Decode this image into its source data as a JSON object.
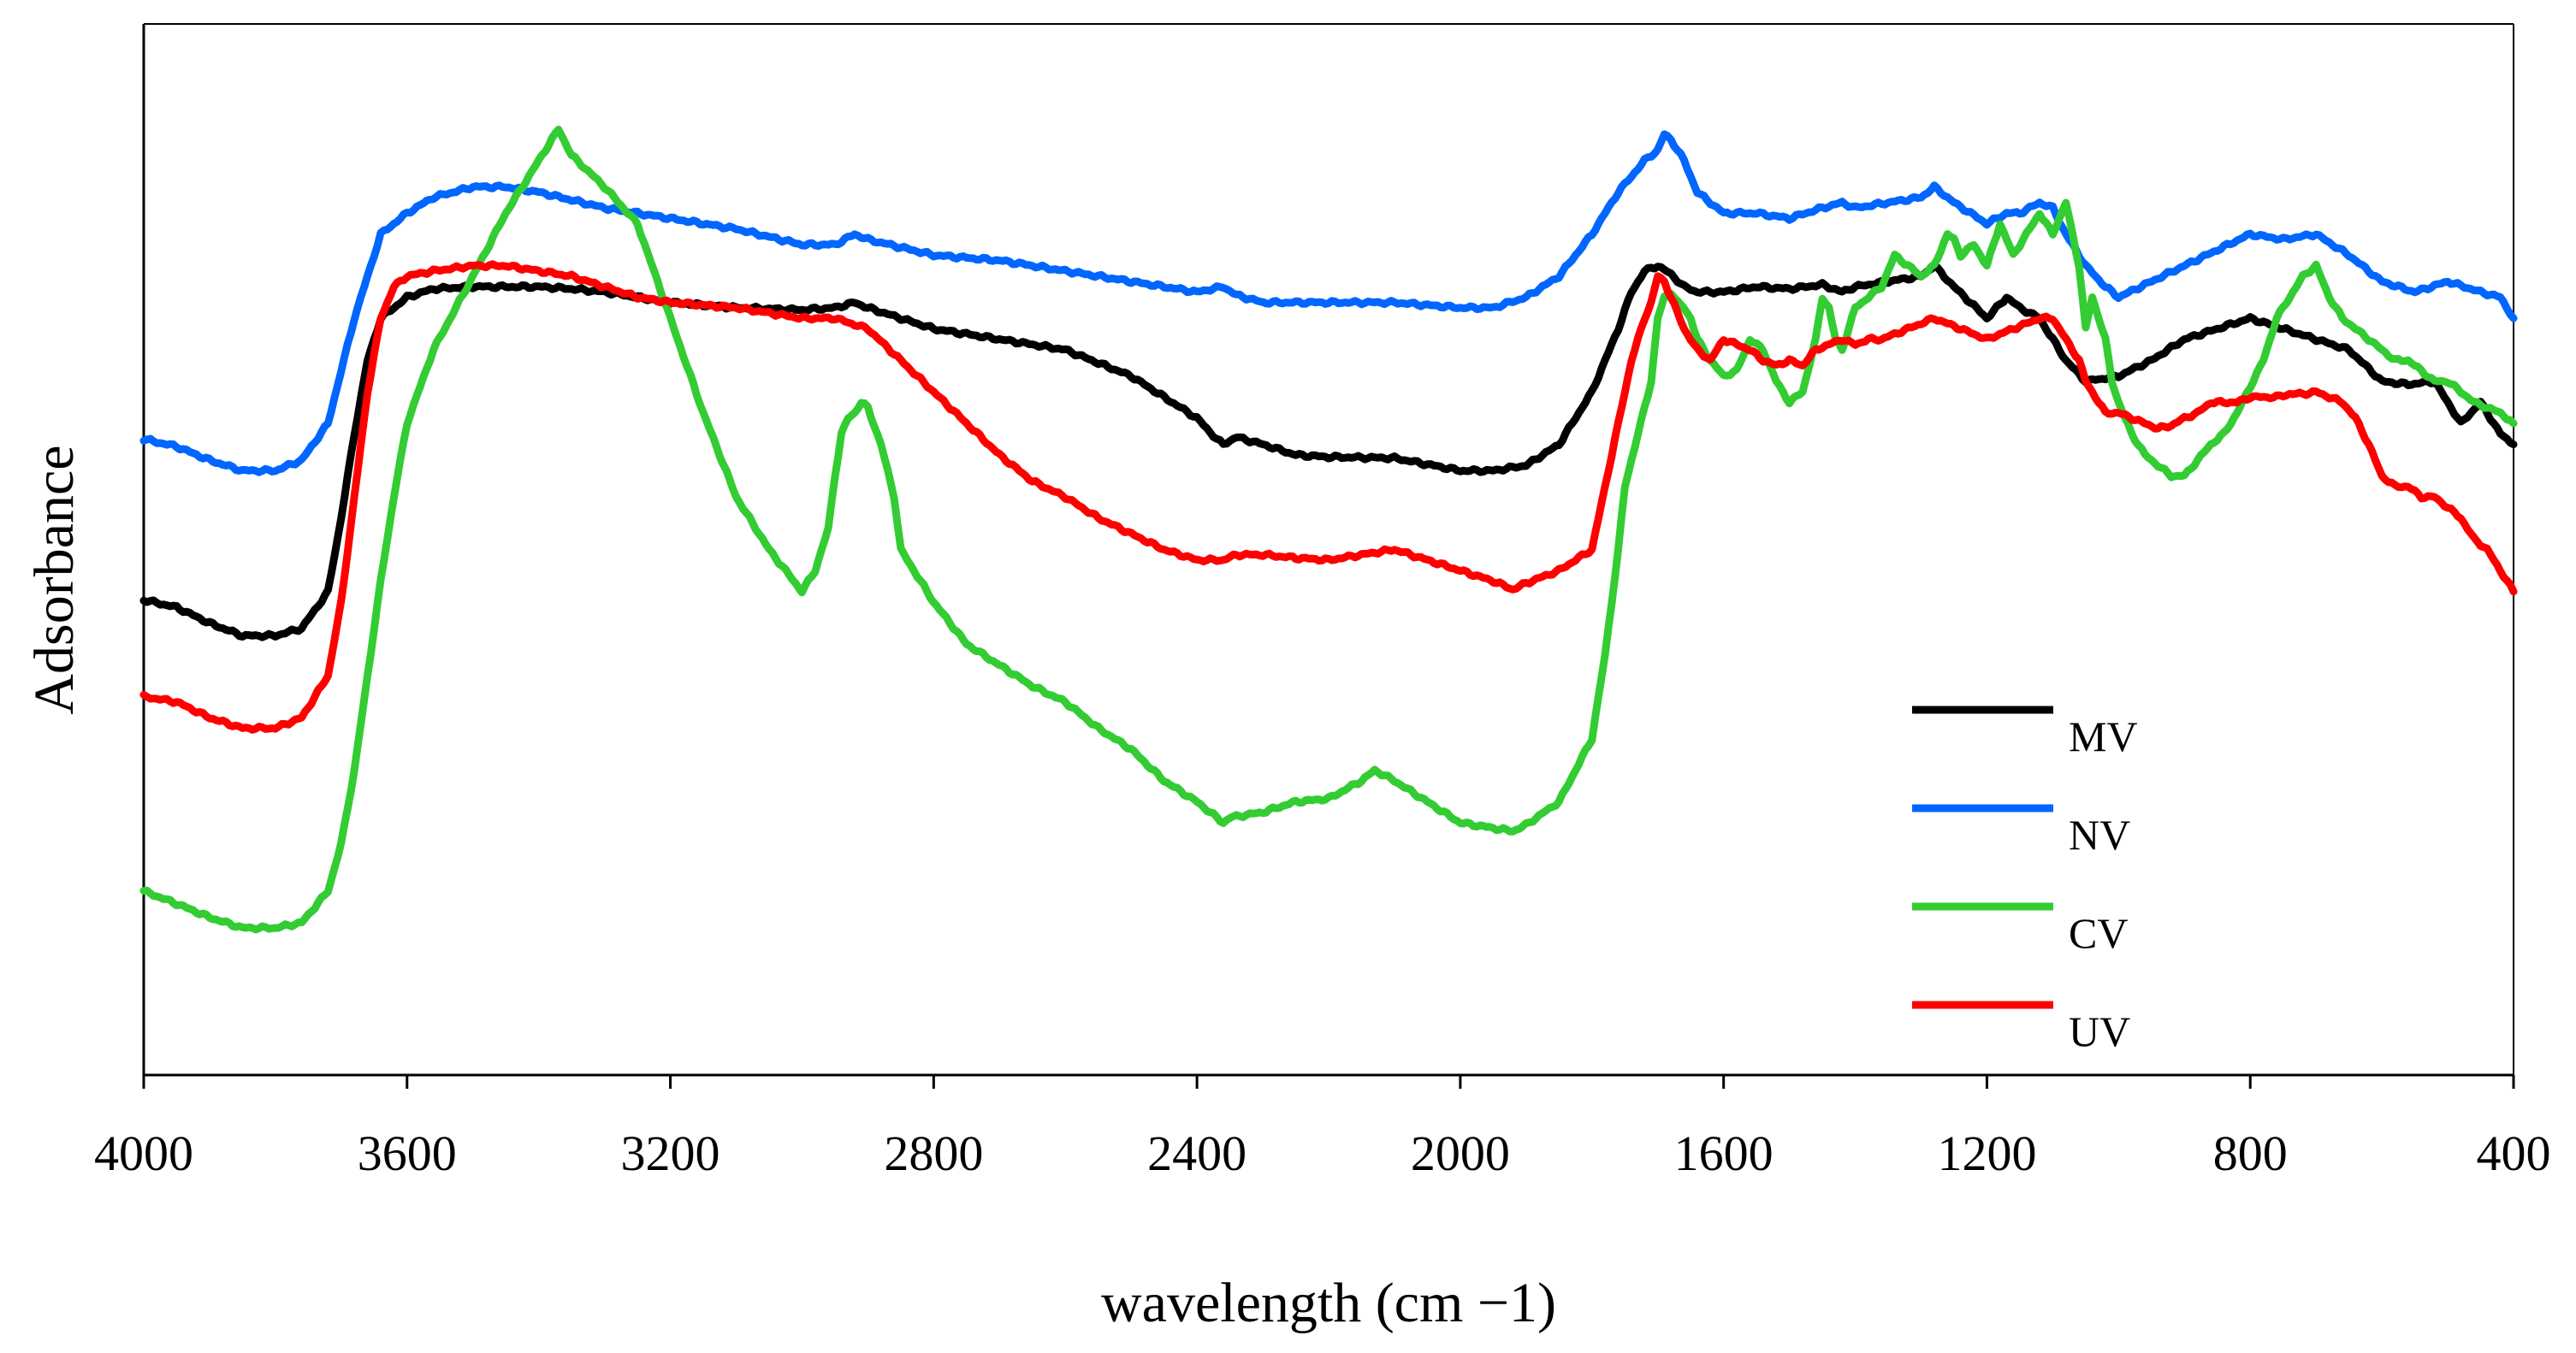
{
  "chart_data": {
    "type": "line",
    "title": "",
    "xlabel": "wavelength (cm −1)",
    "ylabel": "Adsorbance",
    "xlim": [
      4000,
      400
    ],
    "x_reversed": true,
    "ylim": [
      0,
      1
    ],
    "grid": false,
    "legend_position": "right",
    "x_ticks": [
      4000,
      3600,
      3200,
      2800,
      2400,
      2000,
      1600,
      1200,
      800,
      400
    ],
    "x_tick_labels": [
      "4000",
      "3600",
      "3200",
      "2800",
      "2400",
      "2000",
      "1600",
      "1200",
      "800",
      "400"
    ],
    "series": [
      {
        "name": "MV",
        "color": "#000000",
        "x": [
          4000,
          3950,
          3900,
          3850,
          3800,
          3760,
          3720,
          3700,
          3680,
          3660,
          3640,
          3620,
          3600,
          3560,
          3500,
          3450,
          3400,
          3350,
          3300,
          3250,
          3200,
          3100,
          3000,
          2950,
          2920,
          2900,
          2850,
          2800,
          2700,
          2600,
          2500,
          2450,
          2400,
          2370,
          2360,
          2340,
          2300,
          2250,
          2200,
          2100,
          2000,
          1950,
          1900,
          1850,
          1800,
          1760,
          1740,
          1720,
          1700,
          1680,
          1660,
          1640,
          1600,
          1550,
          1500,
          1450,
          1420,
          1400,
          1350,
          1300,
          1280,
          1250,
          1200,
          1170,
          1150,
          1120,
          1100,
          1080,
          1050,
          1000,
          950,
          900,
          850,
          800,
          750,
          700,
          650,
          620,
          600,
          560,
          520,
          480,
          450,
          420,
          400
        ],
        "values": [
          0.452,
          0.445,
          0.43,
          0.418,
          0.418,
          0.425,
          0.46,
          0.53,
          0.61,
          0.68,
          0.72,
          0.73,
          0.74,
          0.748,
          0.75,
          0.75,
          0.75,
          0.748,
          0.745,
          0.74,
          0.735,
          0.73,
          0.728,
          0.73,
          0.735,
          0.73,
          0.72,
          0.71,
          0.7,
          0.69,
          0.665,
          0.645,
          0.625,
          0.605,
          0.6,
          0.607,
          0.6,
          0.59,
          0.588,
          0.587,
          0.575,
          0.575,
          0.58,
          0.6,
          0.65,
          0.71,
          0.745,
          0.765,
          0.77,
          0.762,
          0.75,
          0.745,
          0.745,
          0.75,
          0.748,
          0.752,
          0.745,
          0.75,
          0.755,
          0.76,
          0.77,
          0.75,
          0.72,
          0.74,
          0.73,
          0.72,
          0.7,
          0.68,
          0.66,
          0.665,
          0.68,
          0.7,
          0.71,
          0.72,
          0.71,
          0.7,
          0.69,
          0.672,
          0.66,
          0.657,
          0.66,
          0.62,
          0.64,
          0.61,
          0.6
        ]
      },
      {
        "name": "NV",
        "color": "#0066ff",
        "x": [
          4000,
          3950,
          3900,
          3850,
          3800,
          3760,
          3720,
          3700,
          3680,
          3660,
          3640,
          3600,
          3560,
          3500,
          3450,
          3400,
          3300,
          3200,
          3100,
          3000,
          2950,
          2920,
          2900,
          2800,
          2700,
          2600,
          2500,
          2400,
          2360,
          2340,
          2300,
          2250,
          2200,
          2100,
          2000,
          1950,
          1900,
          1850,
          1800,
          1760,
          1740,
          1720,
          1700,
          1690,
          1680,
          1660,
          1640,
          1600,
          1550,
          1500,
          1450,
          1420,
          1400,
          1350,
          1300,
          1280,
          1250,
          1200,
          1170,
          1150,
          1120,
          1100,
          1080,
          1050,
          1020,
          1000,
          950,
          900,
          850,
          800,
          750,
          700,
          650,
          600,
          550,
          500,
          450,
          420,
          400
        ],
        "values": [
          0.605,
          0.598,
          0.585,
          0.575,
          0.575,
          0.585,
          0.62,
          0.67,
          0.72,
          0.76,
          0.8,
          0.82,
          0.835,
          0.845,
          0.845,
          0.84,
          0.825,
          0.815,
          0.805,
          0.79,
          0.79,
          0.8,
          0.795,
          0.78,
          0.775,
          0.765,
          0.755,
          0.745,
          0.75,
          0.742,
          0.735,
          0.735,
          0.735,
          0.735,
          0.73,
          0.73,
          0.74,
          0.76,
          0.8,
          0.84,
          0.855,
          0.87,
          0.88,
          0.895,
          0.89,
          0.87,
          0.84,
          0.82,
          0.82,
          0.815,
          0.825,
          0.83,
          0.825,
          0.83,
          0.835,
          0.845,
          0.83,
          0.81,
          0.82,
          0.82,
          0.83,
          0.825,
          0.8,
          0.77,
          0.75,
          0.74,
          0.755,
          0.77,
          0.785,
          0.8,
          0.795,
          0.8,
          0.78,
          0.755,
          0.745,
          0.755,
          0.745,
          0.74,
          0.72
        ]
      },
      {
        "name": "CV",
        "color": "#33cc33",
        "x": [
          4000,
          3950,
          3900,
          3850,
          3800,
          3760,
          3720,
          3700,
          3680,
          3660,
          3640,
          3620,
          3600,
          3560,
          3500,
          3450,
          3400,
          3370,
          3350,
          3300,
          3250,
          3200,
          3150,
          3100,
          3050,
          3000,
          2980,
          2960,
          2950,
          2940,
          2930,
          2920,
          2910,
          2900,
          2880,
          2860,
          2850,
          2800,
          2750,
          2700,
          2650,
          2600,
          2550,
          2500,
          2450,
          2400,
          2370,
          2360,
          2350,
          2300,
          2250,
          2200,
          2150,
          2130,
          2100,
          2050,
          2000,
          1950,
          1920,
          1900,
          1850,
          1800,
          1780,
          1760,
          1750,
          1730,
          1710,
          1700,
          1690,
          1680,
          1670,
          1660,
          1650,
          1640,
          1620,
          1600,
          1580,
          1560,
          1540,
          1520,
          1500,
          1480,
          1460,
          1450,
          1440,
          1430,
          1420,
          1410,
          1400,
          1380,
          1360,
          1340,
          1320,
          1300,
          1280,
          1260,
          1250,
          1240,
          1220,
          1200,
          1180,
          1160,
          1140,
          1120,
          1100,
          1080,
          1060,
          1050,
          1040,
          1030,
          1020,
          1010,
          1000,
          980,
          960,
          940,
          920,
          900,
          880,
          860,
          840,
          820,
          800,
          780,
          760,
          740,
          720,
          700,
          680,
          660,
          640,
          620,
          600,
          580,
          560,
          540,
          520,
          500,
          480,
          460,
          440,
          420,
          400
        ],
        "values": [
          0.175,
          0.163,
          0.15,
          0.14,
          0.14,
          0.145,
          0.175,
          0.22,
          0.29,
          0.38,
          0.47,
          0.55,
          0.62,
          0.69,
          0.76,
          0.82,
          0.87,
          0.9,
          0.875,
          0.845,
          0.81,
          0.72,
          0.63,
          0.55,
          0.5,
          0.46,
          0.48,
          0.52,
          0.57,
          0.61,
          0.625,
          0.63,
          0.64,
          0.635,
          0.6,
          0.55,
          0.5,
          0.45,
          0.41,
          0.39,
          0.37,
          0.355,
          0.33,
          0.31,
          0.28,
          0.26,
          0.245,
          0.24,
          0.245,
          0.25,
          0.26,
          0.263,
          0.28,
          0.29,
          0.28,
          0.26,
          0.24,
          0.235,
          0.232,
          0.238,
          0.26,
          0.32,
          0.4,
          0.5,
          0.56,
          0.61,
          0.66,
          0.72,
          0.74,
          0.745,
          0.735,
          0.73,
          0.72,
          0.7,
          0.68,
          0.665,
          0.67,
          0.7,
          0.69,
          0.66,
          0.64,
          0.65,
          0.7,
          0.74,
          0.73,
          0.7,
          0.69,
          0.71,
          0.73,
          0.74,
          0.75,
          0.78,
          0.77,
          0.76,
          0.77,
          0.8,
          0.795,
          0.78,
          0.79,
          0.77,
          0.81,
          0.78,
          0.8,
          0.82,
          0.8,
          0.83,
          0.77,
          0.71,
          0.74,
          0.72,
          0.7,
          0.66,
          0.64,
          0.61,
          0.59,
          0.58,
          0.57,
          0.57,
          0.585,
          0.6,
          0.61,
          0.63,
          0.655,
          0.68,
          0.72,
          0.74,
          0.76,
          0.77,
          0.74,
          0.72,
          0.71,
          0.7,
          0.69,
          0.68,
          0.68,
          0.67,
          0.66,
          0.66,
          0.65,
          0.64,
          0.635,
          0.63,
          0.62
        ]
      },
      {
        "name": "UV",
        "color": "#ff0000",
        "x": [
          4000,
          3950,
          3900,
          3850,
          3800,
          3760,
          3720,
          3700,
          3680,
          3660,
          3640,
          3620,
          3600,
          3560,
          3500,
          3450,
          3400,
          3350,
          3300,
          3250,
          3200,
          3100,
          3000,
          2950,
          2900,
          2850,
          2800,
          2750,
          2700,
          2650,
          2600,
          2550,
          2500,
          2450,
          2400,
          2360,
          2340,
          2300,
          2250,
          2200,
          2150,
          2100,
          2050,
          2000,
          1950,
          1920,
          1900,
          1850,
          1800,
          1780,
          1760,
          1740,
          1720,
          1710,
          1700,
          1690,
          1680,
          1660,
          1640,
          1620,
          1600,
          1580,
          1560,
          1540,
          1520,
          1500,
          1480,
          1460,
          1440,
          1420,
          1400,
          1380,
          1360,
          1340,
          1320,
          1300,
          1280,
          1260,
          1240,
          1220,
          1200,
          1180,
          1160,
          1140,
          1120,
          1100,
          1080,
          1060,
          1050,
          1040,
          1030,
          1020,
          1000,
          980,
          960,
          940,
          920,
          900,
          880,
          860,
          840,
          820,
          800,
          780,
          760,
          740,
          720,
          700,
          680,
          660,
          640,
          620,
          600,
          580,
          560,
          540,
          520,
          500,
          480,
          460,
          440,
          420,
          400
        ],
        "values": [
          0.36,
          0.355,
          0.34,
          0.33,
          0.33,
          0.34,
          0.38,
          0.45,
          0.55,
          0.65,
          0.72,
          0.75,
          0.76,
          0.765,
          0.77,
          0.77,
          0.765,
          0.76,
          0.75,
          0.74,
          0.735,
          0.73,
          0.72,
          0.72,
          0.71,
          0.68,
          0.65,
          0.62,
          0.59,
          0.565,
          0.55,
          0.53,
          0.515,
          0.5,
          0.49,
          0.49,
          0.495,
          0.495,
          0.492,
          0.49,
          0.495,
          0.5,
          0.49,
          0.48,
          0.47,
          0.462,
          0.468,
          0.48,
          0.5,
          0.56,
          0.62,
          0.68,
          0.72,
          0.735,
          0.76,
          0.755,
          0.74,
          0.71,
          0.69,
          0.68,
          0.7,
          0.695,
          0.69,
          0.68,
          0.675,
          0.68,
          0.675,
          0.69,
          0.695,
          0.7,
          0.695,
          0.7,
          0.7,
          0.705,
          0.71,
          0.715,
          0.72,
          0.715,
          0.71,
          0.705,
          0.7,
          0.705,
          0.71,
          0.715,
          0.72,
          0.72,
          0.7,
          0.68,
          0.66,
          0.65,
          0.64,
          0.63,
          0.63,
          0.625,
          0.62,
          0.615,
          0.618,
          0.625,
          0.63,
          0.64,
          0.64,
          0.64,
          0.645,
          0.645,
          0.645,
          0.648,
          0.648,
          0.65,
          0.645,
          0.64,
          0.625,
          0.6,
          0.57,
          0.56,
          0.56,
          0.55,
          0.55,
          0.54,
          0.53,
          0.51,
          0.5,
          0.48,
          0.46
        ]
      }
    ]
  }
}
